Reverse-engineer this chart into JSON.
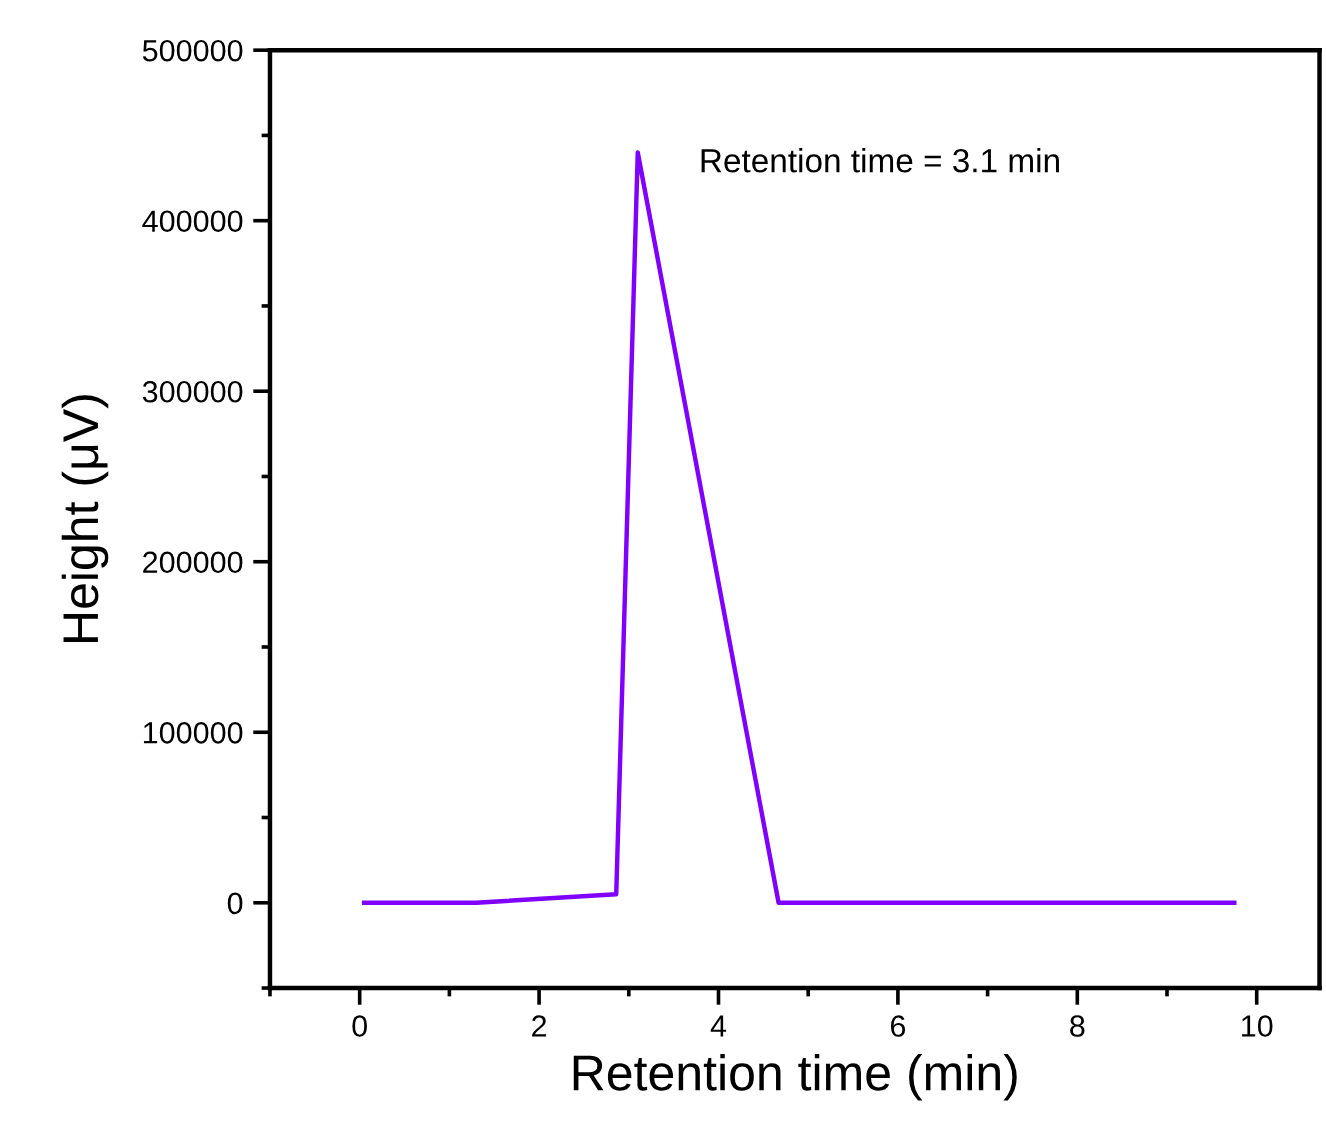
{
  "chart_data": {
    "type": "line",
    "xlabel": "Retention time (min)",
    "ylabel": "Height (μV)",
    "x": [
      0.05,
      1.3,
      2.86,
      3.1,
      4.67,
      9.75
    ],
    "series": [
      {
        "color": "#8000ff",
        "values": [
          0,
          0,
          5000,
          440000,
          0,
          0
        ]
      }
    ],
    "xlim": [
      -1,
      10.7
    ],
    "xticks": [
      0,
      2,
      4,
      6,
      8,
      10
    ],
    "ylim": [
      -50000,
      500000
    ],
    "yticks": [
      0,
      100000,
      200000,
      300000,
      400000,
      500000
    ],
    "annotations": [
      {
        "text": "Retention time = 3.1 min",
        "x": 3.1,
        "y": 440000
      }
    ],
    "grid": false,
    "legend": false,
    "marker": "none",
    "line_style": "solid"
  }
}
